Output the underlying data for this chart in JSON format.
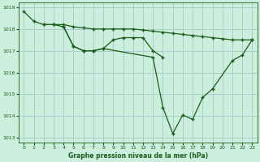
{
  "title": "Graphe pression niveau de la mer (hPa)",
  "background_color": "#cceedd",
  "grid_color": "#aacccc",
  "line_color": "#1a5c1a",
  "xlim": [
    -0.5,
    23.5
  ],
  "ylim": [
    1012.8,
    1019.2
  ],
  "yticks": [
    1013,
    1014,
    1015,
    1016,
    1017,
    1018,
    1019
  ],
  "xticks": [
    0,
    1,
    2,
    3,
    4,
    5,
    6,
    7,
    8,
    9,
    10,
    11,
    12,
    13,
    14,
    15,
    16,
    17,
    18,
    19,
    20,
    21,
    22,
    23
  ],
  "curve1_x": [
    0,
    1,
    2,
    3,
    4,
    5,
    6,
    7,
    8,
    9,
    10,
    11,
    12,
    13,
    14,
    15,
    16,
    17,
    18,
    19,
    20,
    21,
    22,
    23
  ],
  "curve1_y": [
    1018.8,
    1018.35,
    1018.2,
    1018.2,
    1018.2,
    1018.1,
    1018.05,
    1018.0,
    1018.0,
    1018.0,
    1018.0,
    1018.0,
    1017.95,
    1017.9,
    1017.85,
    1017.8,
    1017.75,
    1017.7,
    1017.65,
    1017.6,
    1017.55,
    1017.5,
    1017.5,
    1017.5
  ],
  "curve2_x": [
    2,
    3,
    4,
    5,
    6,
    7,
    8,
    9,
    10,
    11,
    12,
    13,
    14
  ],
  "curve2_y": [
    1018.2,
    1018.2,
    1018.1,
    1017.2,
    1017.0,
    1017.0,
    1017.1,
    1017.5,
    1017.6,
    1017.6,
    1017.6,
    1017.0,
    1016.7
  ],
  "curve3_x": [
    4,
    5,
    6,
    7,
    8,
    13,
    14,
    15,
    16,
    17,
    18,
    19,
    21,
    22,
    23
  ],
  "curve3_y": [
    1018.1,
    1017.2,
    1017.0,
    1017.0,
    1017.1,
    1016.7,
    1014.4,
    1013.2,
    1014.05,
    1013.85,
    1014.85,
    1015.25,
    1016.55,
    1016.8,
    1017.5
  ]
}
